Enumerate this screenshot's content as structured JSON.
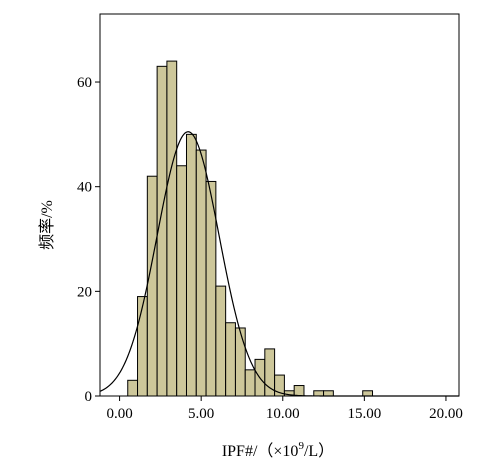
{
  "chart_data": {
    "type": "bar",
    "subtype": "histogram",
    "title": "",
    "xlabel": "IPF#/（×10⁹/L）",
    "xlabel_parts": {
      "pre": "IPF#/（×10",
      "sup": "9",
      "post": "/L）"
    },
    "ylabel": "频率/%",
    "xlim": [
      -1.2,
      20.8
    ],
    "ylim": [
      0,
      73
    ],
    "x_ticks": [
      0,
      5,
      10,
      15,
      20
    ],
    "x_tick_labels": [
      "0.00",
      "5.00",
      "10.00",
      "15.00",
      "20.00"
    ],
    "y_ticks": [
      0,
      20,
      40,
      60
    ],
    "y_tick_labels": [
      "0",
      "20",
      "40",
      "60"
    ],
    "bin_width": 0.6,
    "bins": [
      {
        "x0": 0.5,
        "value": 3
      },
      {
        "x0": 1.1,
        "value": 19
      },
      {
        "x0": 1.7,
        "value": 42
      },
      {
        "x0": 2.3,
        "value": 63
      },
      {
        "x0": 2.9,
        "value": 64
      },
      {
        "x0": 3.5,
        "value": 44
      },
      {
        "x0": 4.1,
        "value": 50
      },
      {
        "x0": 4.7,
        "value": 47
      },
      {
        "x0": 5.3,
        "value": 41
      },
      {
        "x0": 5.9,
        "value": 21
      },
      {
        "x0": 6.5,
        "value": 14
      },
      {
        "x0": 7.1,
        "value": 13
      },
      {
        "x0": 7.7,
        "value": 5
      },
      {
        "x0": 8.3,
        "value": 7
      },
      {
        "x0": 8.9,
        "value": 9
      },
      {
        "x0": 9.5,
        "value": 4
      },
      {
        "x0": 10.1,
        "value": 1
      },
      {
        "x0": 10.7,
        "value": 2
      },
      {
        "x0": 11.3,
        "value": 0
      },
      {
        "x0": 11.9,
        "value": 1
      },
      {
        "x0": 12.5,
        "value": 1
      },
      {
        "x0": 13.1,
        "value": 0
      },
      {
        "x0": 13.7,
        "value": 0
      },
      {
        "x0": 14.3,
        "value": 0
      },
      {
        "x0": 14.9,
        "value": 1
      }
    ],
    "normal_curve": {
      "mean": 4.2,
      "sd": 1.9,
      "peak": 50.5,
      "x_range": [
        -1.2,
        20.8
      ]
    },
    "grid": false,
    "legend": "none"
  }
}
